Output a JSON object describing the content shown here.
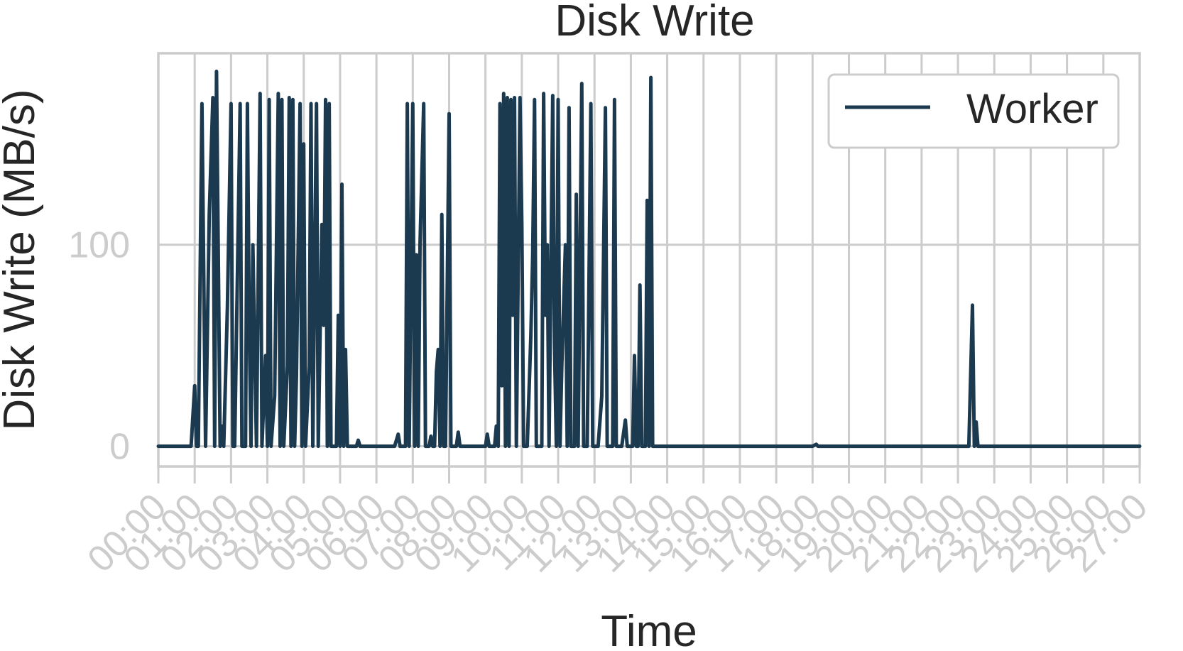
{
  "chart_data": {
    "type": "line",
    "title": "Disk Write",
    "xlabel": "Time",
    "ylabel": "Disk Write (MB/s)",
    "xlim_hours": [
      0,
      27
    ],
    "ylim": [
      -10,
      195
    ],
    "yticks": [
      0,
      100
    ],
    "xtick_labels": [
      "00:00",
      "01:00",
      "02:00",
      "03:00",
      "04:00",
      "05:00",
      "06:00",
      "07:00",
      "08:00",
      "09:00",
      "10:00",
      "11:00",
      "12:00",
      "13:00",
      "14:00",
      "15:00",
      "16:00",
      "17:00",
      "18:00",
      "19:00",
      "20:00",
      "21:00",
      "22:00",
      "23:00",
      "24:00",
      "25:00",
      "26:00",
      "27:00"
    ],
    "grid": true,
    "legend_position": "top-right",
    "colors": {
      "worker": "#1b3a4f",
      "grid": "#cccccc"
    },
    "series": [
      {
        "name": "Worker",
        "points": [
          [
            0.0,
            0
          ],
          [
            0.9,
            0
          ],
          [
            1.0,
            30
          ],
          [
            1.05,
            0
          ],
          [
            1.1,
            0
          ],
          [
            1.2,
            170
          ],
          [
            1.3,
            0
          ],
          [
            1.4,
            115
          ],
          [
            1.5,
            173
          ],
          [
            1.55,
            0
          ],
          [
            1.6,
            186
          ],
          [
            1.7,
            0
          ],
          [
            1.75,
            10
          ],
          [
            1.8,
            0
          ],
          [
            1.9,
            70
          ],
          [
            2.0,
            170
          ],
          [
            2.05,
            0
          ],
          [
            2.1,
            0
          ],
          [
            2.25,
            170
          ],
          [
            2.3,
            0
          ],
          [
            2.4,
            0
          ],
          [
            2.45,
            170
          ],
          [
            2.5,
            60
          ],
          [
            2.55,
            0
          ],
          [
            2.6,
            100
          ],
          [
            2.7,
            0
          ],
          [
            2.8,
            175
          ],
          [
            2.85,
            0
          ],
          [
            2.95,
            45
          ],
          [
            3.0,
            0
          ],
          [
            3.05,
            172
          ],
          [
            3.1,
            0
          ],
          [
            3.2,
            25
          ],
          [
            3.3,
            175
          ],
          [
            3.35,
            0
          ],
          [
            3.4,
            172
          ],
          [
            3.45,
            0
          ],
          [
            3.55,
            40
          ],
          [
            3.6,
            173
          ],
          [
            3.65,
            0
          ],
          [
            3.7,
            172
          ],
          [
            3.75,
            0
          ],
          [
            3.8,
            35
          ],
          [
            3.9,
            170
          ],
          [
            3.95,
            0
          ],
          [
            4.0,
            150
          ],
          [
            4.05,
            0
          ],
          [
            4.15,
            40
          ],
          [
            4.2,
            170
          ],
          [
            4.25,
            0
          ],
          [
            4.35,
            170
          ],
          [
            4.4,
            0
          ],
          [
            4.5,
            110
          ],
          [
            4.55,
            60
          ],
          [
            4.6,
            172
          ],
          [
            4.65,
            0
          ],
          [
            4.7,
            170
          ],
          [
            4.75,
            0
          ],
          [
            4.9,
            0
          ],
          [
            4.95,
            65
          ],
          [
            5.0,
            0
          ],
          [
            5.05,
            130
          ],
          [
            5.1,
            0
          ],
          [
            5.15,
            48
          ],
          [
            5.2,
            0
          ],
          [
            5.3,
            0
          ],
          [
            5.45,
            0
          ],
          [
            5.5,
            3
          ],
          [
            5.55,
            0
          ],
          [
            6.5,
            0
          ],
          [
            6.6,
            6
          ],
          [
            6.65,
            0
          ],
          [
            6.8,
            0
          ],
          [
            6.85,
            170
          ],
          [
            6.9,
            0
          ],
          [
            7.0,
            170
          ],
          [
            7.05,
            0
          ],
          [
            7.1,
            95
          ],
          [
            7.15,
            0
          ],
          [
            7.2,
            100
          ],
          [
            7.3,
            170
          ],
          [
            7.35,
            0
          ],
          [
            7.45,
            0
          ],
          [
            7.5,
            5
          ],
          [
            7.55,
            0
          ],
          [
            7.6,
            0
          ],
          [
            7.65,
            37
          ],
          [
            7.7,
            48
          ],
          [
            7.75,
            0
          ],
          [
            7.8,
            115
          ],
          [
            7.85,
            0
          ],
          [
            7.9,
            0
          ],
          [
            8.0,
            165
          ],
          [
            8.05,
            0
          ],
          [
            8.2,
            0
          ],
          [
            8.25,
            7
          ],
          [
            8.3,
            0
          ],
          [
            9.0,
            0
          ],
          [
            9.05,
            6
          ],
          [
            9.1,
            0
          ],
          [
            9.25,
            0
          ],
          [
            9.3,
            10
          ],
          [
            9.35,
            0
          ],
          [
            9.4,
            170
          ],
          [
            9.45,
            30
          ],
          [
            9.5,
            175
          ],
          [
            9.55,
            0
          ],
          [
            9.6,
            173
          ],
          [
            9.65,
            0
          ],
          [
            9.7,
            172
          ],
          [
            9.75,
            65
          ],
          [
            9.8,
            173
          ],
          [
            9.85,
            0
          ],
          [
            9.95,
            173
          ],
          [
            10.0,
            110
          ],
          [
            10.05,
            0
          ],
          [
            10.15,
            0
          ],
          [
            10.25,
            55
          ],
          [
            10.3,
            95
          ],
          [
            10.35,
            172
          ],
          [
            10.4,
            0
          ],
          [
            10.55,
            0
          ],
          [
            10.6,
            175
          ],
          [
            10.65,
            65
          ],
          [
            10.7,
            100
          ],
          [
            10.75,
            0
          ],
          [
            10.85,
            174
          ],
          [
            10.9,
            50
          ],
          [
            10.95,
            0
          ],
          [
            11.0,
            172
          ],
          [
            11.05,
            0
          ],
          [
            11.1,
            40
          ],
          [
            11.2,
            100
          ],
          [
            11.25,
            0
          ],
          [
            11.3,
            168
          ],
          [
            11.35,
            0
          ],
          [
            11.45,
            0
          ],
          [
            11.5,
            125
          ],
          [
            11.55,
            0
          ],
          [
            11.65,
            180
          ],
          [
            11.7,
            0
          ],
          [
            11.8,
            0
          ],
          [
            11.9,
            170
          ],
          [
            11.95,
            0
          ],
          [
            12.1,
            0
          ],
          [
            12.2,
            25
          ],
          [
            12.3,
            168
          ],
          [
            12.35,
            0
          ],
          [
            12.5,
            0
          ],
          [
            12.55,
            172
          ],
          [
            12.6,
            0
          ],
          [
            12.75,
            0
          ],
          [
            12.85,
            13
          ],
          [
            12.9,
            0
          ],
          [
            13.05,
            0
          ],
          [
            13.1,
            45
          ],
          [
            13.15,
            0
          ],
          [
            13.2,
            0
          ],
          [
            13.25,
            80
          ],
          [
            13.3,
            0
          ],
          [
            13.4,
            0
          ],
          [
            13.45,
            122
          ],
          [
            13.5,
            0
          ],
          [
            13.55,
            183
          ],
          [
            13.6,
            0
          ],
          [
            13.7,
            0
          ],
          [
            14.0,
            0
          ],
          [
            18.0,
            0
          ],
          [
            18.1,
            1
          ],
          [
            18.15,
            0
          ],
          [
            22.3,
            0
          ],
          [
            22.4,
            70
          ],
          [
            22.45,
            0
          ],
          [
            22.5,
            12
          ],
          [
            22.55,
            0
          ],
          [
            27.0,
            0
          ]
        ]
      }
    ]
  }
}
